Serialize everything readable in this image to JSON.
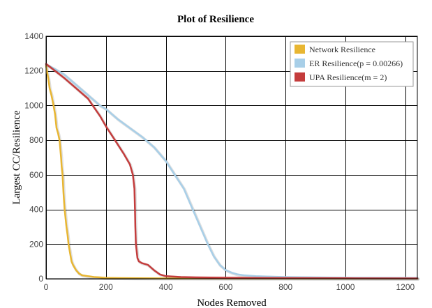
{
  "chart_data": {
    "type": "line",
    "title": "Plot of Resilience",
    "xlabel": "Nodes Removed",
    "ylabel": "Largest CC/Resilience",
    "xlim": [
      0,
      1240
    ],
    "ylim": [
      0,
      1400
    ],
    "x_ticks": [
      "0",
      "200",
      "400",
      "600",
      "800",
      "1000",
      "1200"
    ],
    "y_ticks": [
      "0",
      "200",
      "400",
      "600",
      "800",
      "1000",
      "1200",
      "1400"
    ],
    "grid": true,
    "legend_position": "top-right",
    "series": [
      {
        "name": "Network Resilience",
        "color": "#e8b632",
        "points": [
          [
            0,
            1230
          ],
          [
            3,
            1200
          ],
          [
            8,
            1150
          ],
          [
            12,
            1100
          ],
          [
            18,
            1060
          ],
          [
            25,
            1000
          ],
          [
            30,
            950
          ],
          [
            35,
            870
          ],
          [
            40,
            840
          ],
          [
            45,
            800
          ],
          [
            50,
            700
          ],
          [
            52,
            650
          ],
          [
            55,
            600
          ],
          [
            58,
            500
          ],
          [
            60,
            450
          ],
          [
            62,
            400
          ],
          [
            65,
            350
          ],
          [
            68,
            300
          ],
          [
            72,
            250
          ],
          [
            75,
            200
          ],
          [
            80,
            150
          ],
          [
            85,
            100
          ],
          [
            90,
            80
          ],
          [
            100,
            50
          ],
          [
            110,
            30
          ],
          [
            120,
            20
          ],
          [
            140,
            15
          ],
          [
            160,
            10
          ],
          [
            180,
            8
          ],
          [
            200,
            5
          ],
          [
            240,
            4
          ],
          [
            300,
            3
          ],
          [
            400,
            2
          ],
          [
            600,
            1
          ],
          [
            1240,
            1
          ]
        ]
      },
      {
        "name": "ER Resilience(p = 0.00266)",
        "color": "#a8cfe8",
        "points": [
          [
            0,
            1238
          ],
          [
            30,
            1210
          ],
          [
            60,
            1180
          ],
          [
            100,
            1120
          ],
          [
            140,
            1060
          ],
          [
            180,
            1000
          ],
          [
            200,
            980
          ],
          [
            240,
            920
          ],
          [
            280,
            870
          ],
          [
            320,
            820
          ],
          [
            360,
            760
          ],
          [
            400,
            680
          ],
          [
            430,
            600
          ],
          [
            460,
            520
          ],
          [
            480,
            440
          ],
          [
            500,
            360
          ],
          [
            520,
            280
          ],
          [
            540,
            200
          ],
          [
            560,
            130
          ],
          [
            580,
            80
          ],
          [
            600,
            50
          ],
          [
            620,
            35
          ],
          [
            640,
            25
          ],
          [
            660,
            20
          ],
          [
            700,
            15
          ],
          [
            800,
            10
          ],
          [
            900,
            8
          ],
          [
            1000,
            6
          ],
          [
            1240,
            5
          ]
        ]
      },
      {
        "name": "UPA Resilience(m = 2)",
        "color": "#c43c3c",
        "points": [
          [
            0,
            1240
          ],
          [
            30,
            1200
          ],
          [
            60,
            1160
          ],
          [
            100,
            1100
          ],
          [
            140,
            1040
          ],
          [
            160,
            990
          ],
          [
            180,
            940
          ],
          [
            200,
            880
          ],
          [
            230,
            800
          ],
          [
            260,
            720
          ],
          [
            280,
            660
          ],
          [
            290,
            600
          ],
          [
            295,
            520
          ],
          [
            297,
            400
          ],
          [
            298,
            300
          ],
          [
            300,
            200
          ],
          [
            305,
            120
          ],
          [
            310,
            100
          ],
          [
            320,
            90
          ],
          [
            340,
            80
          ],
          [
            360,
            50
          ],
          [
            380,
            25
          ],
          [
            400,
            15
          ],
          [
            450,
            10
          ],
          [
            500,
            8
          ],
          [
            600,
            6
          ],
          [
            800,
            4
          ],
          [
            1000,
            3
          ],
          [
            1240,
            2
          ]
        ]
      }
    ]
  }
}
